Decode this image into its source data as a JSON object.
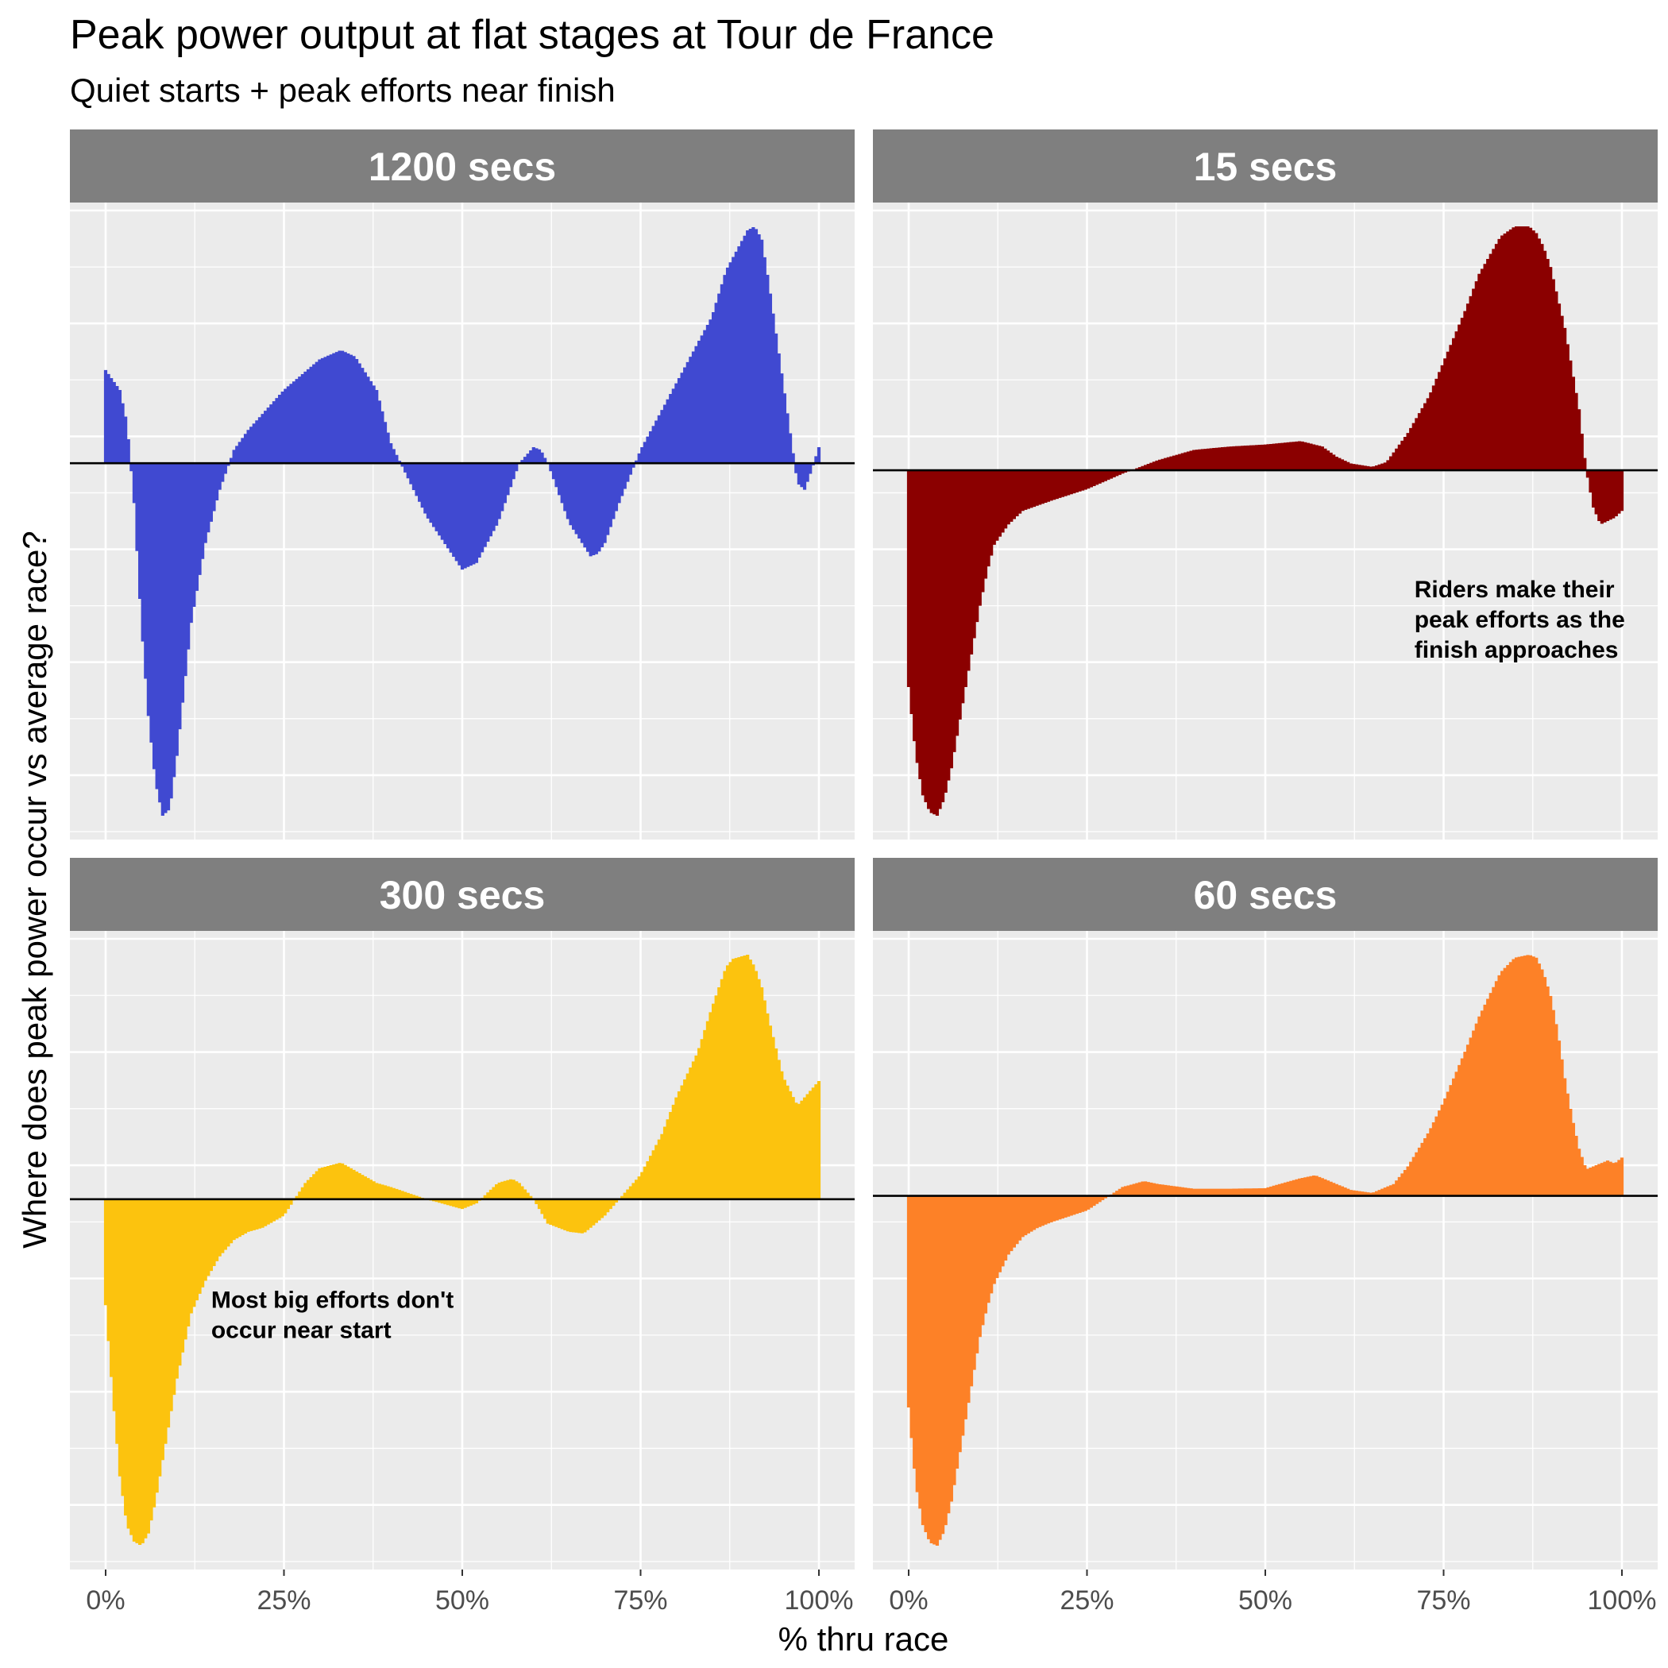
{
  "title": "Peak power output at flat stages at Tour de France",
  "subtitle": "Quiet starts + peak efforts near finish",
  "chart_data": {
    "type": "area",
    "xlabel": "% thru race",
    "ylabel": "Where does peak power occur vs average race?",
    "x_ticks": [
      "0%",
      "25%",
      "50%",
      "75%",
      "100%"
    ],
    "x_range": [
      0,
      100
    ],
    "grid": true,
    "y_tick_labels_shown": false,
    "panels": [
      {
        "label": "1200 secs",
        "color": "#4049d1",
        "annotation": "",
        "x": [
          0,
          2,
          3,
          4,
          5,
          6,
          7,
          8,
          9,
          10,
          11,
          12,
          14,
          16,
          18,
          20,
          25,
          30,
          33,
          35,
          38,
          40,
          45,
          50,
          52,
          55,
          58,
          60,
          61,
          62,
          65,
          68,
          69,
          70,
          72,
          75,
          80,
          85,
          87,
          90,
          91,
          92,
          93,
          95,
          97,
          98,
          99,
          100
        ],
        "y": [
          0.7,
          0.55,
          0.3,
          -0.3,
          -1.2,
          -1.9,
          -2.4,
          -2.65,
          -2.6,
          -2.2,
          -1.7,
          -1.2,
          -0.6,
          -0.2,
          0.1,
          0.25,
          0.55,
          0.78,
          0.85,
          0.8,
          0.55,
          0.15,
          -0.4,
          -0.8,
          -0.75,
          -0.45,
          0.0,
          0.12,
          0.1,
          0.0,
          -0.45,
          -0.7,
          -0.68,
          -0.6,
          -0.3,
          0.1,
          0.6,
          1.1,
          1.45,
          1.75,
          1.78,
          1.68,
          1.35,
          0.6,
          -0.15,
          -0.2,
          -0.05,
          0.12
        ]
      },
      {
        "label": "15 secs",
        "color": "#8b0000",
        "annotation": "Riders make their peak efforts as the finish approaches",
        "x": [
          0,
          1,
          2,
          3,
          4,
          5,
          6,
          7,
          8,
          9,
          10,
          11,
          12,
          14,
          16,
          20,
          25,
          30,
          35,
          40,
          45,
          50,
          55,
          58,
          60,
          62,
          65,
          67,
          70,
          73,
          75,
          78,
          80,
          83,
          85,
          87,
          88,
          89,
          90,
          92,
          94,
          95,
          96,
          97,
          98,
          99,
          100
        ],
        "y": [
          -3.2,
          -4.2,
          -4.8,
          -5.05,
          -5.1,
          -4.85,
          -4.4,
          -3.8,
          -3.2,
          -2.6,
          -2.0,
          -1.5,
          -1.1,
          -0.8,
          -0.6,
          -0.45,
          -0.28,
          -0.05,
          0.15,
          0.3,
          0.35,
          0.38,
          0.43,
          0.35,
          0.2,
          0.1,
          0.05,
          0.12,
          0.55,
          1.1,
          1.6,
          2.35,
          2.9,
          3.45,
          3.6,
          3.6,
          3.5,
          3.3,
          3.0,
          2.1,
          0.9,
          0.0,
          -0.55,
          -0.8,
          -0.75,
          -0.7,
          -0.6
        ]
      },
      {
        "label": "300 secs",
        "color": "#fcc30e",
        "annotation": "Most big efforts don't occur near start",
        "x": [
          0,
          1,
          2,
          3,
          4,
          5,
          6,
          7,
          8,
          9,
          10,
          11,
          12,
          14,
          16,
          18,
          20,
          22,
          25,
          28,
          30,
          33,
          35,
          38,
          40,
          45,
          50,
          52,
          55,
          57,
          58,
          60,
          62,
          65,
          67,
          68,
          70,
          72,
          75,
          78,
          80,
          83,
          85,
          87,
          88,
          90,
          91,
          92,
          93,
          95,
          97,
          98,
          100
        ],
        "y": [
          -1.3,
          -2.4,
          -3.4,
          -4.0,
          -4.2,
          -4.25,
          -4.1,
          -3.7,
          -3.2,
          -2.7,
          -2.2,
          -1.8,
          -1.4,
          -1.0,
          -0.7,
          -0.5,
          -0.4,
          -0.35,
          -0.2,
          0.2,
          0.38,
          0.45,
          0.35,
          0.2,
          0.15,
          0.0,
          -0.12,
          -0.05,
          0.2,
          0.25,
          0.2,
          0.0,
          -0.3,
          -0.4,
          -0.42,
          -0.35,
          -0.2,
          0.0,
          0.3,
          0.8,
          1.25,
          1.8,
          2.35,
          2.85,
          2.95,
          3.0,
          2.85,
          2.6,
          2.2,
          1.5,
          1.15,
          1.25,
          1.45
        ]
      },
      {
        "label": "60 secs",
        "color": "#fd8127",
        "annotation": "",
        "x": [
          0,
          1,
          2,
          3,
          4,
          5,
          6,
          7,
          8,
          9,
          10,
          11,
          12,
          14,
          16,
          18,
          20,
          25,
          30,
          33,
          35,
          40,
          45,
          50,
          52,
          55,
          57,
          58,
          60,
          62,
          65,
          68,
          70,
          73,
          75,
          78,
          80,
          83,
          85,
          87,
          88,
          89,
          90,
          91,
          92,
          93,
          94,
          95,
          96,
          97,
          98,
          99,
          100
        ],
        "y": [
          -3.6,
          -4.9,
          -5.6,
          -5.9,
          -5.95,
          -5.7,
          -5.2,
          -4.5,
          -3.8,
          -3.1,
          -2.4,
          -1.9,
          -1.5,
          -1.0,
          -0.7,
          -0.55,
          -0.45,
          -0.25,
          0.15,
          0.25,
          0.2,
          0.12,
          0.12,
          0.13,
          0.2,
          0.3,
          0.35,
          0.3,
          0.2,
          0.1,
          0.05,
          0.2,
          0.5,
          1.1,
          1.6,
          2.45,
          3.05,
          3.8,
          4.05,
          4.1,
          4.05,
          3.8,
          3.4,
          2.8,
          2.0,
          1.35,
          0.8,
          0.45,
          0.5,
          0.55,
          0.6,
          0.55,
          0.65
        ]
      }
    ]
  }
}
